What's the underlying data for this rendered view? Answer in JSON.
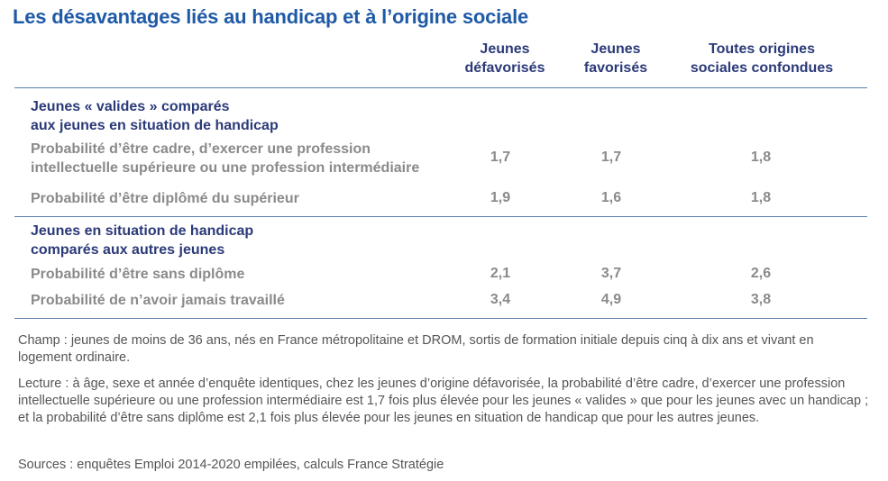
{
  "title": "Les désavantages liés au handicap et à l’origine sociale",
  "columns": [
    {
      "line1": "Jeunes",
      "line2": "défavorisés"
    },
    {
      "line1": "Jeunes",
      "line2": "favorisés"
    },
    {
      "line1": "Toutes origines",
      "line2": "sociales confondues"
    }
  ],
  "groups": [
    {
      "line1": "Jeunes « valides » comparés",
      "line2": "aux jeunes en situation de handicap",
      "rows": [
        {
          "line1": "Probabilité d’être cadre, d’exercer une profession",
          "line2": "intellectuelle supérieure ou une profession intermédiaire",
          "values": [
            "1,7",
            "1,7",
            "1,8"
          ]
        },
        {
          "line1": "Probabilité d’être diplômé du supérieur",
          "values": [
            "1,9",
            "1,6",
            "1,8"
          ]
        }
      ]
    },
    {
      "line1": "Jeunes en situation de handicap",
      "line2": "comparés aux autres jeunes",
      "rows": [
        {
          "line1": "Probabilité d’être sans diplôme",
          "values": [
            "2,1",
            "3,7",
            "2,6"
          ]
        },
        {
          "line1": "Probabilité de n’avoir jamais travaillé",
          "values": [
            "3,4",
            "4,9",
            "3,8"
          ]
        }
      ]
    }
  ],
  "notes": {
    "champ": "Champ : jeunes de moins de 36 ans, nés en France métropolitaine et DROM, sortis de formation initiale depuis cinq à dix ans et vivant en logement ordinaire.",
    "lecture": "Lecture : à âge, sexe et année d’enquête identiques, chez les jeunes d’origine défavorisée, la probabilité d’être cadre, d’exercer une profession intellectuelle supérieure ou une profession intermédiaire est 1,7 fois plus élevée pour les jeunes « valides » que pour les jeunes avec un handicap ; et la probabilité d’être sans diplôme est 2,1 fois plus élevée pour les jeunes en situation de handicap que pour les autres jeunes.",
    "sources": "Sources : enquêtes Emploi 2014-2020 empilées, calculs France Stratégie"
  }
}
